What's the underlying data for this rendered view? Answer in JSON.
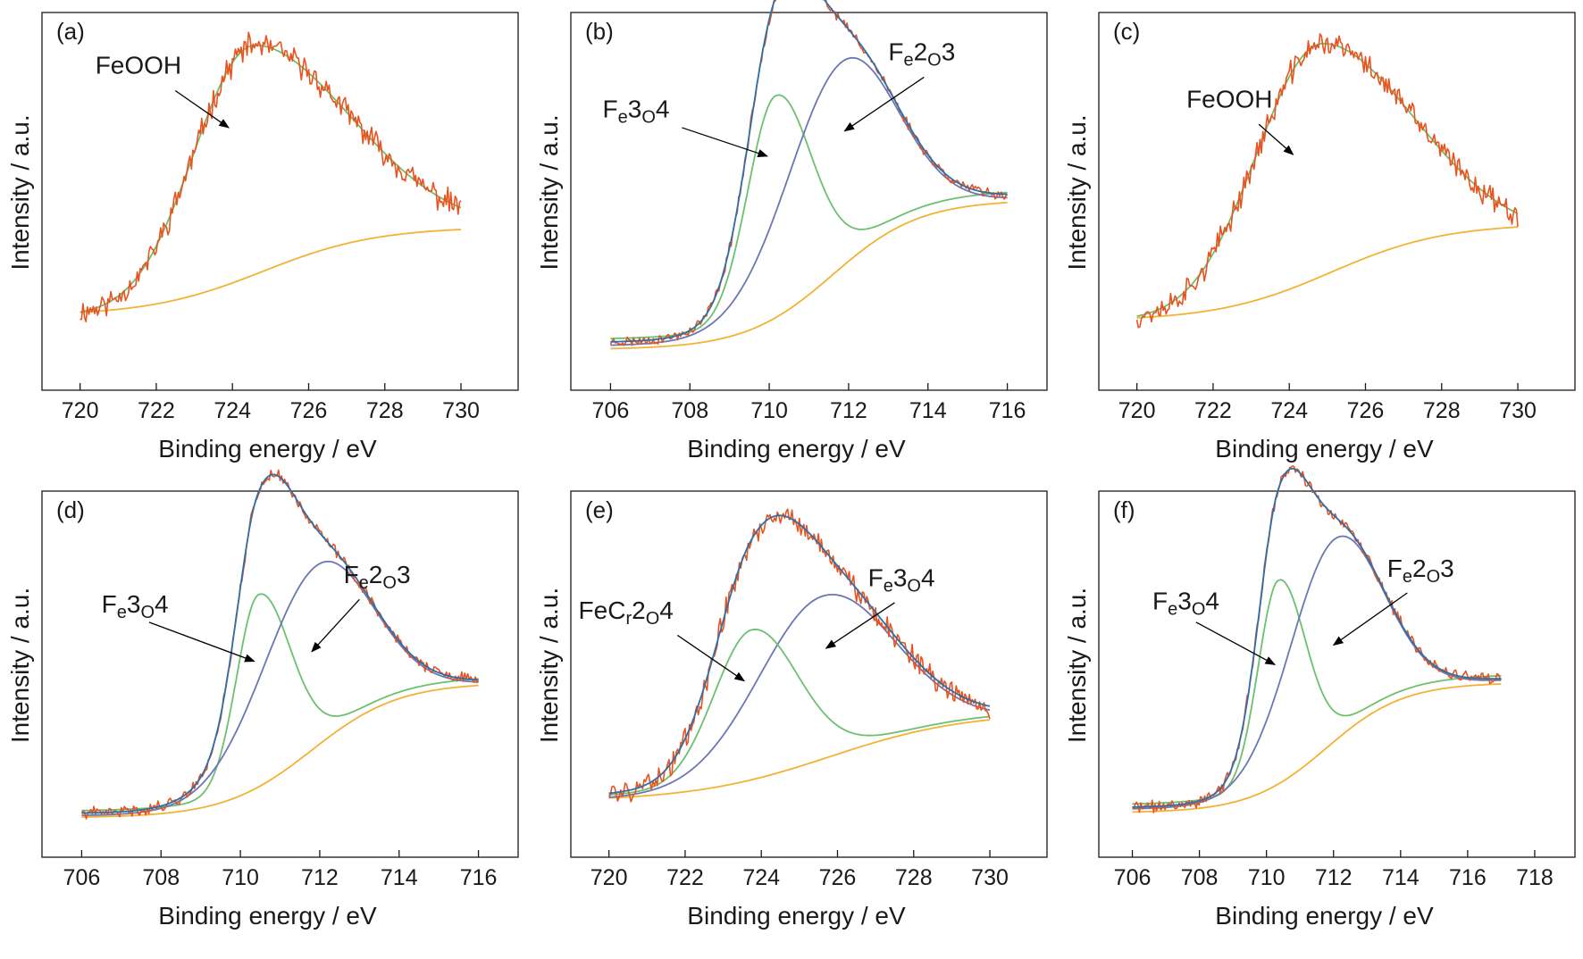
{
  "figure": {
    "colors": {
      "raw": "#e8531f",
      "envelope": "#2e6fa8",
      "fe3o4": "#6cc070",
      "fe2o3": "#6a77b3",
      "background": "#f2b233",
      "axis": "#1a1a1a"
    }
  },
  "chart_data": [
    {
      "label": "(a)",
      "type": "line",
      "xlabel": "Binding energy / eV",
      "ylabel": "Intensity / a.u.",
      "xlim": [
        719,
        731.5
      ],
      "xticks": [
        "720",
        "722",
        "724",
        "726",
        "728",
        "730"
      ],
      "x_range": [
        720,
        730
      ],
      "ylim": [
        0,
        1
      ],
      "grid": false,
      "series": [
        {
          "key": "background",
          "color": "#f2b233",
          "model": {
            "kind": "shirley",
            "lo": 0.12,
            "hi": 0.385,
            "center": 724.8,
            "width": 1.5
          }
        },
        {
          "key": "feooh",
          "color": "#6cc070",
          "model": {
            "kind": "asym",
            "base": 0.12,
            "amp": 0.805,
            "center": 724.6,
            "wl": 1.55,
            "wr": 2.55,
            "tail": 0.265
          }
        },
        {
          "key": "raw",
          "color": "#e8531f",
          "model": {
            "kind": "noisy",
            "follows": "feooh",
            "noise": 0.03,
            "seed": 11
          }
        }
      ],
      "annotations": [
        {
          "text": "FeOOH",
          "sub": [],
          "tx": 720.4,
          "ty": 0.84,
          "ax": 722.5,
          "ay": 0.79,
          "bx": 723.9,
          "by": 0.68
        }
      ]
    },
    {
      "label": "(b)",
      "type": "line",
      "xlabel": "Binding energy / eV",
      "ylabel": "Intensity / a.u.",
      "xlim": [
        705,
        717
      ],
      "xticks": [
        "706",
        "708",
        "710",
        "712",
        "714",
        "716"
      ],
      "x_range": [
        706,
        716
      ],
      "ylim": [
        0,
        1
      ],
      "grid": false,
      "series": [
        {
          "key": "background",
          "color": "#f2b233",
          "model": {
            "kind": "shirley",
            "lo": 0.02,
            "hi": 0.465,
            "center": 711.6,
            "width": 1.1
          }
        },
        {
          "key": "fe3o4",
          "color": "#6cc070",
          "model": {
            "kind": "peakbg",
            "amp": 0.63,
            "center": 710.15,
            "wl": 0.7,
            "wr": 0.9,
            "bgshift": 0.03
          }
        },
        {
          "key": "fe2o3",
          "color": "#6a77b3",
          "model": {
            "kind": "peakbg",
            "amp": 0.6,
            "center": 711.8,
            "wl": 1.4,
            "wr": 1.35,
            "bgshift": 0.01
          }
        },
        {
          "key": "envelope",
          "color": "#2e6fa8",
          "model": {
            "kind": "envelope",
            "of": [
              "fe3o4",
              "fe2o3"
            ],
            "shift": 0.02
          }
        },
        {
          "key": "raw",
          "color": "#e8531f",
          "model": {
            "kind": "noisy",
            "follows": "envelope",
            "noise": 0.012,
            "seed": 23
          }
        }
      ],
      "annotations": [
        {
          "text": "Fe3O4",
          "sub": [
            1,
            3
          ],
          "tx": 705.8,
          "ty": 0.71,
          "ax": 707.8,
          "ay": 0.68,
          "bx": 709.95,
          "by": 0.595
        },
        {
          "text": "Fe2O3",
          "sub": [
            1,
            3
          ],
          "tx": 713.0,
          "ty": 0.88,
          "ax": 713.9,
          "ay": 0.83,
          "bx": 711.9,
          "by": 0.67
        }
      ]
    },
    {
      "label": "(c)",
      "type": "line",
      "xlabel": "Binding energy / eV",
      "ylabel": "Intensity / a.u.",
      "xlim": [
        719,
        731.5
      ],
      "xticks": [
        "720",
        "722",
        "724",
        "726",
        "728",
        "730"
      ],
      "x_range": [
        720,
        730
      ],
      "ylim": [
        0,
        1
      ],
      "grid": false,
      "series": [
        {
          "key": "background",
          "color": "#f2b233",
          "model": {
            "kind": "shirley",
            "lo": 0.105,
            "hi": 0.395,
            "center": 725.1,
            "width": 1.5
          }
        },
        {
          "key": "feooh",
          "color": "#6cc070",
          "model": {
            "kind": "asym",
            "base": 0.105,
            "amp": 0.825,
            "center": 724.9,
            "wl": 1.7,
            "wr": 2.45,
            "tail": 0.255
          }
        },
        {
          "key": "raw",
          "color": "#e8531f",
          "model": {
            "kind": "noisy",
            "follows": "feooh",
            "noise": 0.03,
            "seed": 37
          }
        }
      ],
      "annotations": [
        {
          "text": "FeOOH",
          "sub": [],
          "tx": 721.3,
          "ty": 0.74,
          "ax": 723.2,
          "ay": 0.69,
          "bx": 724.1,
          "by": 0.6
        }
      ]
    },
    {
      "label": "(d)",
      "type": "line",
      "xlabel": "Binding energy / eV",
      "ylabel": "Intensity / a.u.",
      "xlim": [
        705,
        717
      ],
      "xticks": [
        "706",
        "708",
        "710",
        "712",
        "714",
        "716"
      ],
      "x_range": [
        706,
        716
      ],
      "ylim": [
        0,
        1
      ],
      "grid": false,
      "series": [
        {
          "key": "background",
          "color": "#f2b233",
          "model": {
            "kind": "shirley",
            "lo": 0.02,
            "hi": 0.435,
            "center": 711.8,
            "width": 1.1
          }
        },
        {
          "key": "fe3o4",
          "color": "#6cc070",
          "model": {
            "kind": "peakbg",
            "amp": 0.57,
            "center": 710.45,
            "wl": 0.55,
            "wr": 0.8,
            "bgshift": 0.02
          }
        },
        {
          "key": "fe2o3",
          "color": "#6a77b3",
          "model": {
            "kind": "peakbg",
            "amp": 0.55,
            "center": 711.9,
            "wl": 1.4,
            "wr": 1.35,
            "bgshift": 0.005
          }
        },
        {
          "key": "envelope",
          "color": "#2e6fa8",
          "model": {
            "kind": "envelope",
            "of": [
              "fe3o4",
              "fe2o3"
            ],
            "shift": 0.012
          }
        },
        {
          "key": "raw",
          "color": "#e8531f",
          "model": {
            "kind": "noisy",
            "follows": "envelope",
            "noise": 0.014,
            "seed": 41
          }
        }
      ],
      "annotations": [
        {
          "text": "Fe3O4",
          "sub": [
            1,
            3
          ],
          "tx": 706.5,
          "ty": 0.65,
          "ax": 707.7,
          "ay": 0.62,
          "bx": 710.35,
          "by": 0.5
        },
        {
          "text": "Fe2O3",
          "sub": [
            1,
            3
          ],
          "tx": 712.6,
          "ty": 0.74,
          "ax": 713.0,
          "ay": 0.69,
          "bx": 711.8,
          "by": 0.53
        }
      ]
    },
    {
      "label": "(e)",
      "type": "line",
      "xlabel": "Binding energy / eV",
      "ylabel": "Intensity / a.u.",
      "xlim": [
        719,
        731.5
      ],
      "xticks": [
        "720",
        "722",
        "724",
        "726",
        "728",
        "730"
      ],
      "x_range": [
        720,
        730
      ],
      "ylim": [
        0,
        1
      ],
      "grid": false,
      "series": [
        {
          "key": "background",
          "color": "#f2b233",
          "model": {
            "kind": "shirley",
            "lo": 0.07,
            "hi": 0.345,
            "center": 725.8,
            "width": 1.8
          }
        },
        {
          "key": "fecr2o4",
          "color": "#6cc070",
          "model": {
            "kind": "peakbg",
            "amp": 0.45,
            "center": 723.75,
            "wl": 1.0,
            "wr": 1.2,
            "bgshift": 0.01
          }
        },
        {
          "key": "fe3o4",
          "color": "#6a77b3",
          "model": {
            "kind": "peakbg",
            "amp": 0.5,
            "center": 725.6,
            "wl": 1.7,
            "wr": 1.85,
            "bgshift": 0.0
          }
        },
        {
          "key": "envelope",
          "color": "#2e6fa8",
          "model": {
            "kind": "envelope",
            "of": [
              "fecr2o4",
              "fe3o4"
            ],
            "shift": 0.012
          }
        },
        {
          "key": "raw",
          "color": "#e8531f",
          "model": {
            "kind": "noisy",
            "follows": "envelope",
            "noise": 0.028,
            "seed": 59
          }
        }
      ],
      "annotations": [
        {
          "text": "FeCr2O4",
          "sub": [
            3,
            5
          ],
          "tx": 719.2,
          "ty": 0.63,
          "ax": 721.8,
          "ay": 0.58,
          "bx": 723.55,
          "by": 0.44
        },
        {
          "text": "Fe3O4",
          "sub": [
            1,
            3
          ],
          "tx": 726.8,
          "ty": 0.73,
          "ax": 727.5,
          "ay": 0.68,
          "bx": 725.7,
          "by": 0.54
        }
      ]
    },
    {
      "label": "(f)",
      "type": "line",
      "xlabel": "Binding energy / eV",
      "ylabel": "Intensity / a.u.",
      "xlim": [
        705,
        719.2
      ],
      "xticks": [
        "706",
        "708",
        "710",
        "712",
        "714",
        "716",
        "718"
      ],
      "x_range": [
        706,
        717
      ],
      "ylim": [
        0,
        1
      ],
      "grid": false,
      "series": [
        {
          "key": "background",
          "color": "#f2b233",
          "model": {
            "kind": "shirley",
            "lo": 0.035,
            "hi": 0.435,
            "center": 711.8,
            "width": 1.15
          }
        },
        {
          "key": "fe3o4",
          "color": "#6cc070",
          "model": {
            "kind": "peakbg",
            "amp": 0.6,
            "center": 710.35,
            "wl": 0.6,
            "wr": 0.8,
            "bgshift": 0.025
          }
        },
        {
          "key": "fe2o3",
          "color": "#6a77b3",
          "model": {
            "kind": "peakbg",
            "amp": 0.61,
            "center": 712.0,
            "wl": 1.35,
            "wr": 1.4,
            "bgshift": 0.01
          }
        },
        {
          "key": "envelope",
          "color": "#2e6fa8",
          "model": {
            "kind": "envelope",
            "of": [
              "fe3o4",
              "fe2o3"
            ],
            "shift": 0.015
          }
        },
        {
          "key": "raw",
          "color": "#e8531f",
          "model": {
            "kind": "noisy",
            "follows": "envelope",
            "noise": 0.014,
            "seed": 71
          }
        }
      ],
      "annotations": [
        {
          "text": "Fe3O4",
          "sub": [
            1,
            3
          ],
          "tx": 706.6,
          "ty": 0.66,
          "ax": 707.9,
          "ay": 0.62,
          "bx": 710.25,
          "by": 0.49
        },
        {
          "text": "Fe2O3",
          "sub": [
            1,
            3
          ],
          "tx": 713.6,
          "ty": 0.76,
          "ax": 714.2,
          "ay": 0.71,
          "bx": 712.0,
          "by": 0.55
        }
      ]
    }
  ]
}
